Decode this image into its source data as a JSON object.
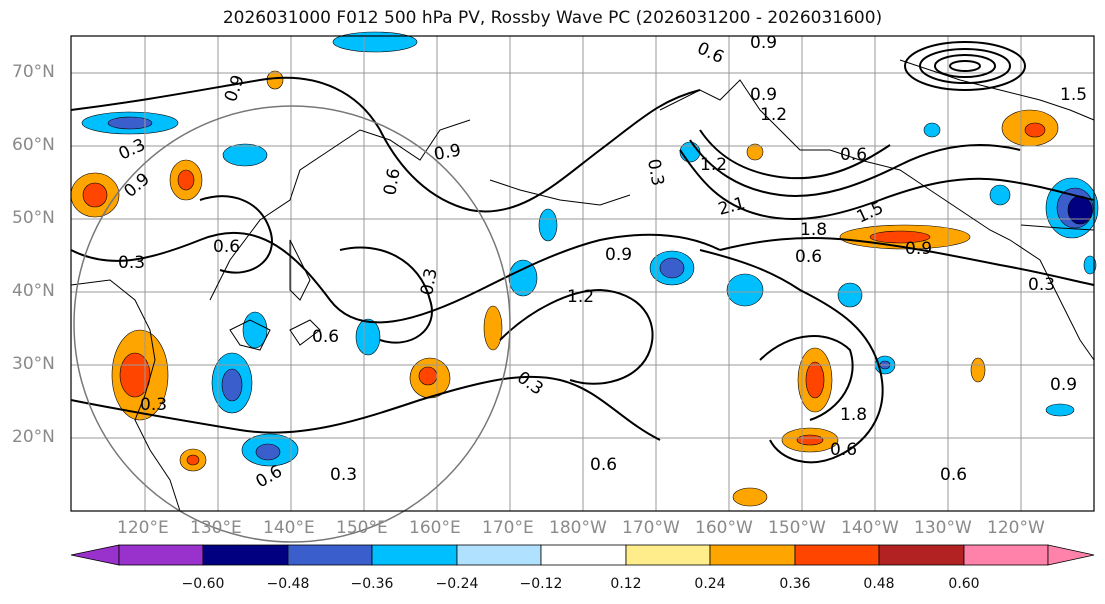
{
  "title": "2026031000 F012 500 hPa PV, Rossby Wave PC (2026031200 - 2026031600)",
  "lat_labels": [
    "70°N",
    "60°N",
    "50°N",
    "40°N",
    "30°N",
    "20°N"
  ],
  "lon_labels": [
    "120°E",
    "130°E",
    "140°E",
    "150°E",
    "160°E",
    "170°E",
    "180°W",
    "170°W",
    "160°W",
    "150°W",
    "140°W",
    "130°W",
    "120°W"
  ],
  "contour_labels": [
    "0.3",
    "0.6",
    "0.9",
    "1.2",
    "1.5",
    "1.8",
    "2.1",
    "0.3",
    "0.6",
    "0.9",
    "0.3",
    "0.6",
    "0.9",
    "1.2",
    "0.9",
    "0.3",
    "0.6",
    "0.9",
    "0.3",
    "0.6",
    "0.9",
    "0.3",
    "0.6",
    "0.6",
    "0.9",
    "0.3",
    "1.2",
    "0.6",
    "1.8",
    "1.5",
    "0.9",
    "0.3",
    "0.6",
    "0.6"
  ],
  "colorbar": {
    "ticks": [
      "−0.60",
      "−0.48",
      "−0.36",
      "−0.24",
      "−0.12",
      "0.12",
      "0.24",
      "0.36",
      "0.48",
      "0.60"
    ],
    "colors": [
      "#9932cc",
      "#000080",
      "#3a5fcd",
      "#00bfff",
      "#b0e2ff",
      "#ffffff",
      "#ffec8b",
      "#ffa500",
      "#ff4500",
      "#b22222",
      "#ff82ab"
    ]
  }
}
